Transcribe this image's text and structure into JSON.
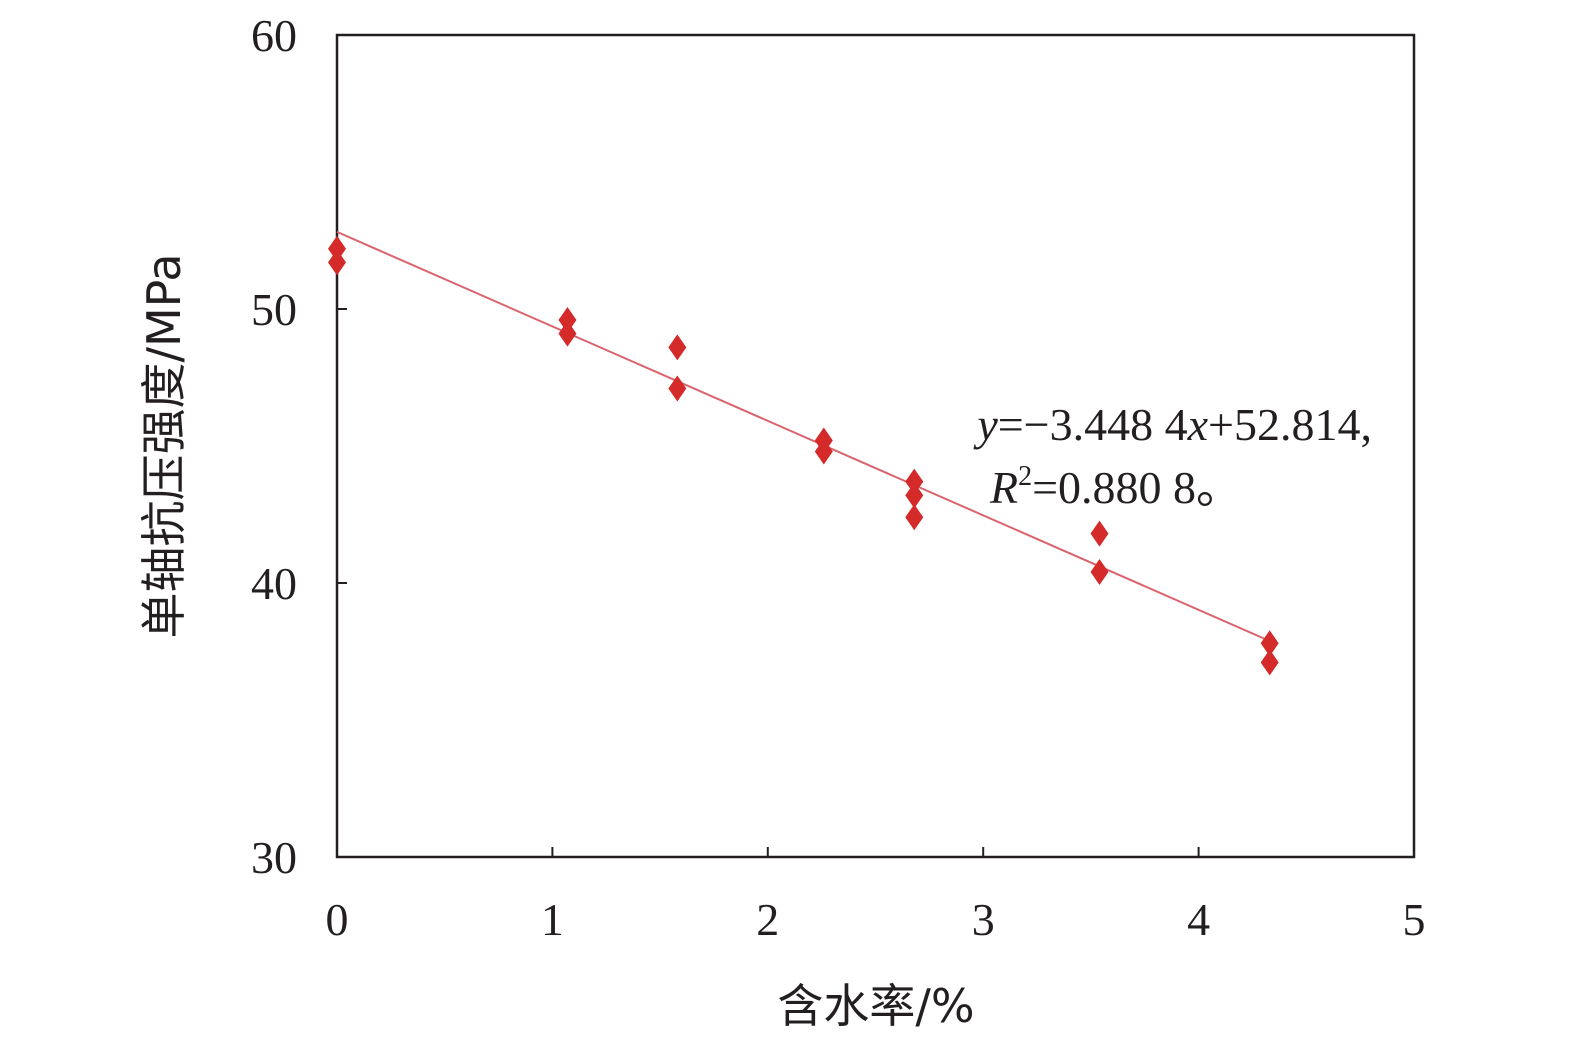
{
  "chart_data": {
    "type": "scatter",
    "xlabel": "含水率/%",
    "ylabel": "单轴抗压强度/MPa",
    "xlim": [
      0,
      5
    ],
    "ylim": [
      30,
      60
    ],
    "xticks": [
      "0",
      "1",
      "2",
      "3",
      "4",
      "5"
    ],
    "yticks": [
      "30",
      "40",
      "50",
      "60"
    ],
    "grid": false,
    "marker_color": "#d42a2a",
    "line_color": "#d9646e",
    "series": [
      {
        "x": [
          0,
          0,
          1.07,
          1.07,
          1.58,
          1.58,
          2.26,
          2.26,
          2.68,
          2.68,
          2.68,
          3.54,
          3.54,
          4.33,
          4.33
        ],
        "y": [
          52.2,
          51.7,
          49.6,
          49.1,
          48.6,
          47.1,
          45.2,
          44.8,
          43.7,
          43.2,
          42.4,
          41.8,
          40.4,
          37.8,
          37.1
        ]
      }
    ],
    "fit": {
      "slope": -3.4484,
      "intercept": 52.814,
      "x_range": [
        0,
        4.33
      ]
    },
    "annotation": {
      "line1_y": "y",
      "line1_rest": "=−3.448 4",
      "line1_x": "x",
      "line1_end": "+52.814,",
      "line2_r": "R",
      "line2_sup": "2",
      "line2_rest": "=0.880 8。"
    }
  }
}
